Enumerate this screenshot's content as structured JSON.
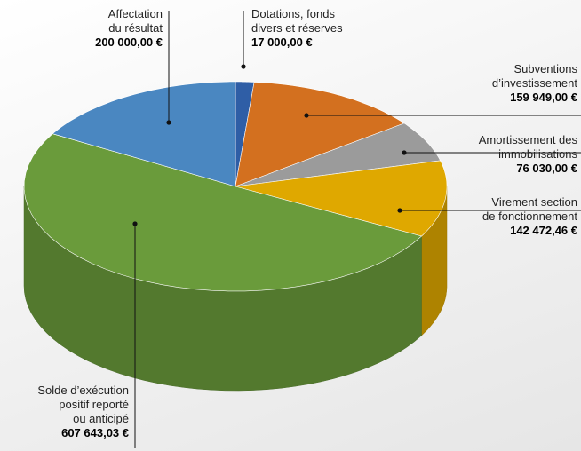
{
  "chart_data": {
    "type": "pie3d",
    "categories": [
      "Dotations, fonds\ndivers et réserves",
      "Subventions\nd’investissement",
      "Amortissement des\nimmobilisations",
      "Virement section\nde fonctionnement",
      "Solde d’exécution\npositif reporté\nou anticipé",
      "Affectation\ndu résultat"
    ],
    "values": [
      17000,
      159949,
      76030,
      142472.46,
      607643.03,
      200000
    ],
    "value_labels": [
      "17 000,00 €",
      "159 949,00 €",
      "76 030,00 €",
      "142 472,46 €",
      "607 643,03 €",
      "200 000,00 €"
    ],
    "colors": [
      "#2f5ea6",
      "#d3701f",
      "#9b9b9b",
      "#dfa800",
      "#6a9b3b",
      "#4a87c1"
    ]
  }
}
